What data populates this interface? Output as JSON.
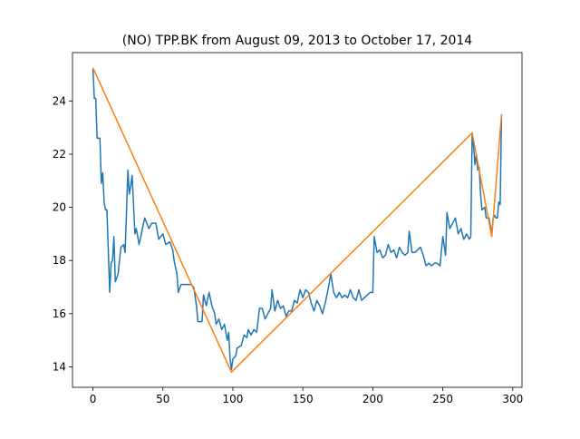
{
  "chart_data": {
    "type": "line",
    "title": "(NO) TPP.BK from August 09, 2013 to October 17, 2014",
    "xlim": [
      -14.6,
      306.6
    ],
    "ylim": [
      13.23,
      25.82
    ],
    "xticks": [
      0,
      50,
      100,
      150,
      200,
      250,
      300
    ],
    "yticks": [
      14,
      16,
      18,
      20,
      22,
      24
    ],
    "series": [
      {
        "color": "#1f77b4",
        "x": [
          0,
          1,
          2,
          3,
          5,
          6,
          7,
          8,
          9,
          10,
          12,
          13,
          14,
          15,
          16,
          18,
          20,
          22,
          23,
          25,
          26,
          27,
          28,
          30,
          31,
          33,
          35,
          37,
          40,
          42,
          45,
          47,
          50,
          52,
          55,
          57,
          58,
          60,
          61,
          63,
          65,
          70,
          72,
          74,
          75,
          78,
          79,
          81,
          83,
          85,
          87,
          88,
          90,
          92,
          94,
          96,
          97,
          98,
          99,
          100,
          102,
          103,
          106,
          108,
          110,
          111,
          113,
          115,
          117,
          119,
          121,
          123,
          125,
          127,
          128,
          130,
          132,
          134,
          136,
          138,
          140,
          142,
          144,
          146,
          148,
          150,
          152,
          154,
          156,
          158,
          160,
          162,
          164,
          166,
          168,
          170,
          172,
          174,
          176,
          178,
          180,
          182,
          184,
          186,
          188,
          190,
          192,
          194,
          196,
          198,
          200,
          201,
          203,
          205,
          207,
          209,
          211,
          213,
          215,
          217,
          219,
          221,
          223,
          225,
          226,
          228,
          230,
          232,
          234,
          236,
          238,
          240,
          242,
          244,
          246,
          248,
          250,
          252,
          253,
          255,
          257,
          259,
          261,
          263,
          265,
          267,
          269,
          270,
          271,
          272,
          273,
          274,
          275,
          276,
          277,
          278,
          280,
          281,
          283,
          284,
          285,
          286,
          287,
          288,
          289,
          290,
          291,
          292
        ],
        "values": [
          25.2,
          24.1,
          24.1,
          22.6,
          22.6,
          20.9,
          21.3,
          20.2,
          19.9,
          19.9,
          16.8,
          17.9,
          18.0,
          18.9,
          17.2,
          17.5,
          18.5,
          18.6,
          18.3,
          21.4,
          20.5,
          20.8,
          21.2,
          19.0,
          19.2,
          18.6,
          19.1,
          19.6,
          19.2,
          19.4,
          19.4,
          18.8,
          19.0,
          18.6,
          18.7,
          18.4,
          18.0,
          17.5,
          16.8,
          17.1,
          17.1,
          17.1,
          17.0,
          16.3,
          15.7,
          15.7,
          16.7,
          16.3,
          16.8,
          16.3,
          16.0,
          15.6,
          15.8,
          15.4,
          15.6,
          15.0,
          15.3,
          14.3,
          13.9,
          14.3,
          14.4,
          14.7,
          14.8,
          15.2,
          15.1,
          15.4,
          15.2,
          15.4,
          15.3,
          16.2,
          16.2,
          15.8,
          16.0,
          16.2,
          16.9,
          16.1,
          16.5,
          16.2,
          16.3,
          15.9,
          16.1,
          16.1,
          16.5,
          16.4,
          16.9,
          16.6,
          16.9,
          16.8,
          16.4,
          16.1,
          16.5,
          16.3,
          16.0,
          16.4,
          16.9,
          17.5,
          16.8,
          16.6,
          16.8,
          16.6,
          16.7,
          16.6,
          16.9,
          16.6,
          16.5,
          16.9,
          16.5,
          16.6,
          16.7,
          16.8,
          16.8,
          18.9,
          18.3,
          18.4,
          18.1,
          18.2,
          18.6,
          18.3,
          18.4,
          18.1,
          18.5,
          18.3,
          18.2,
          18.3,
          19.1,
          18.3,
          18.3,
          18.4,
          18.5,
          18.2,
          17.8,
          17.9,
          17.8,
          17.9,
          17.9,
          17.8,
          18.9,
          18.2,
          19.8,
          19.2,
          19.4,
          19.6,
          19.0,
          19.2,
          18.8,
          19.0,
          18.8,
          18.9,
          22.8,
          22.3,
          21.6,
          22.0,
          21.4,
          21.5,
          20.5,
          19.9,
          20.0,
          19.6,
          19.6,
          19.3,
          19.0,
          19.6,
          19.7,
          19.6,
          19.6,
          20.2,
          20.1,
          23.5
        ]
      },
      {
        "color": "#ff7f0e",
        "x": [
          0,
          99,
          271,
          285,
          292
        ],
        "values": [
          25.25,
          13.8,
          22.8,
          18.9,
          23.5
        ]
      }
    ]
  }
}
